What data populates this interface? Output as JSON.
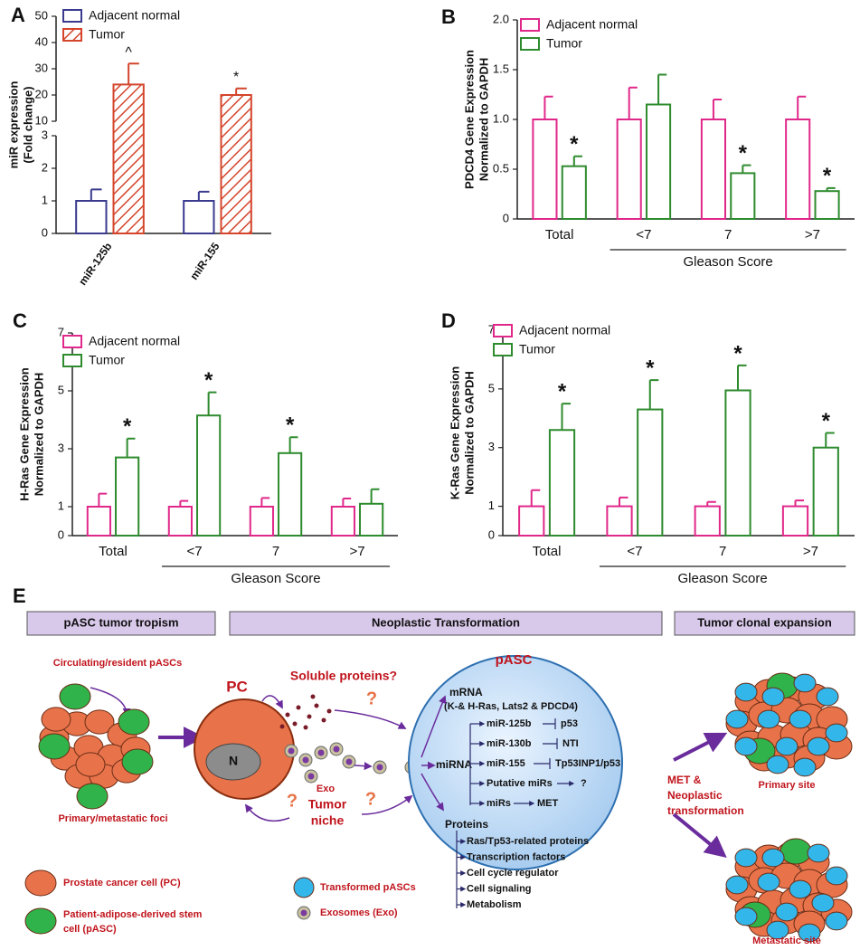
{
  "chart_data": [
    {
      "type": "bar",
      "label": "A",
      "ylabel": [
        "miR expression",
        "(Fold change)"
      ],
      "categories": [
        "miR-125b",
        "miR-155"
      ],
      "ylim": [
        0,
        50
      ],
      "ybreak": [
        3,
        10
      ],
      "yticks": [
        0,
        1,
        2,
        3,
        10,
        20,
        30,
        40,
        50
      ],
      "legend": "upper left",
      "hatch": [
        false,
        true
      ],
      "xlabel_rotation": -55,
      "series": [
        {
          "name": "Adjacent normal",
          "color": "#3b3b8f",
          "values": [
            1,
            1
          ],
          "errors": [
            0.35,
            0.28
          ],
          "annotations": [
            null,
            null
          ]
        },
        {
          "name": "Tumor",
          "color": "#d4452c",
          "values": [
            24,
            20
          ],
          "errors": [
            8,
            2.5
          ],
          "annotations": [
            "^",
            "*"
          ]
        }
      ]
    },
    {
      "type": "bar",
      "label": "B",
      "ylabel": [
        "PDCD4 Gene Expression",
        "Normalized to GAPDH"
      ],
      "categories": [
        "Total",
        "<7",
        "7",
        ">7"
      ],
      "xgroups": [
        {
          "label": "Gleason Score",
          "categories": [
            "<7",
            "7",
            ">7"
          ]
        }
      ],
      "ylim": [
        0,
        2
      ],
      "yticks": [
        0,
        0.5,
        {
          "value": 1,
          "label": "1.0"
        },
        1.5,
        {
          "value": 2,
          "label": "2.0"
        }
      ],
      "legend": "upper left",
      "hatch": [
        false,
        false
      ],
      "series": [
        {
          "name": "Adjacent normal",
          "color": "#e0288a",
          "values": [
            1,
            1,
            1,
            1
          ],
          "errors": [
            0.23,
            0.32,
            0.2,
            0.23
          ],
          "annotations": [
            null,
            null,
            null,
            null
          ]
        },
        {
          "name": "Tumor",
          "color": "#2e8b2e",
          "values": [
            0.53,
            1.15,
            0.46,
            0.28
          ],
          "errors": [
            0.1,
            0.3,
            0.08,
            0.03
          ],
          "annotations": [
            "*",
            null,
            "*",
            "*"
          ]
        }
      ]
    },
    {
      "type": "bar",
      "label": "C",
      "ylabel": [
        "H-Ras Gene Expression",
        "Normalized to GAPDH"
      ],
      "categories": [
        "Total",
        "<7",
        "7",
        ">7"
      ],
      "xgroups": [
        {
          "label": "Gleason Score",
          "categories": [
            "<7",
            "7",
            ">7"
          ]
        }
      ],
      "ylim": [
        0,
        7
      ],
      "yticks": [
        0,
        1,
        3,
        5,
        7
      ],
      "legend": "upper left",
      "hatch": [
        false,
        false
      ],
      "series": [
        {
          "name": "Adjacent normal",
          "color": "#e0288a",
          "values": [
            1,
            1,
            1,
            1
          ],
          "errors": [
            0.45,
            0.2,
            0.3,
            0.28
          ],
          "annotations": [
            null,
            null,
            null,
            null
          ]
        },
        {
          "name": "Tumor",
          "color": "#2e8b2e",
          "values": [
            2.7,
            4.15,
            2.85,
            1.1
          ],
          "errors": [
            0.65,
            0.8,
            0.55,
            0.5
          ],
          "annotations": [
            "*",
            "*",
            "*",
            null
          ]
        }
      ]
    },
    {
      "type": "bar",
      "label": "D",
      "ylabel": [
        "K-Ras Gene Expression",
        "Normalized to GAPDH"
      ],
      "categories": [
        "Total",
        "<7",
        "7",
        ">7"
      ],
      "xgroups": [
        {
          "label": "Gleason Score",
          "categories": [
            "<7",
            "7",
            ">7"
          ]
        }
      ],
      "ylim": [
        0,
        7
      ],
      "yticks": [
        0,
        1,
        3,
        5,
        7
      ],
      "legend": "upper left",
      "hatch": [
        false,
        false
      ],
      "series": [
        {
          "name": "Adjacent normal",
          "color": "#e0288a",
          "values": [
            1,
            1,
            1,
            1
          ],
          "errors": [
            0.55,
            0.3,
            0.15,
            0.2
          ],
          "annotations": [
            null,
            null,
            null,
            null
          ]
        },
        {
          "name": "Tumor",
          "color": "#2e8b2e",
          "values": [
            3.6,
            4.3,
            4.95,
            3.0
          ],
          "errors": [
            0.9,
            1.0,
            0.85,
            0.5
          ],
          "annotations": [
            "*",
            "*",
            "*",
            "*"
          ]
        }
      ]
    }
  ],
  "diagram": {
    "label": "E",
    "headers": [
      "pASC tumor tropism",
      "Neoplastic Transformation",
      "Tumor clonal expansion"
    ],
    "circulating": "Circulating/resident pASCs",
    "foci": "Primary/metastatic foci",
    "soluble": "Soluble proteins?",
    "pc": "PC",
    "nucleus": "N",
    "exo": "Exo",
    "niche": [
      "Tumor",
      "niche"
    ],
    "question_marks": [
      "?",
      "?",
      "?"
    ],
    "pasc": "pASC",
    "mrna": {
      "title": "mRNA",
      "genes": "(K-& H-Ras, Lats2 & PDCD4)"
    },
    "mirna": {
      "title": "miRNA",
      "items": [
        {
          "name": "miR-125b",
          "target": "p53"
        },
        {
          "name": "miR-130b",
          "target": "NTI"
        },
        {
          "name": "miR-155",
          "target": "Tp53INP1/p53"
        },
        {
          "name": "Putative miRs",
          "target": "?"
        },
        {
          "name": "miRs",
          "target": "MET"
        }
      ]
    },
    "proteins": {
      "title": "Proteins",
      "items": [
        "Ras/Tp53-related proteins",
        "Transcription factors",
        "Cell cycle regulator",
        "Cell signaling",
        "Metabolism"
      ]
    },
    "transition": [
      "MET &",
      "Neoplastic",
      "transformation"
    ],
    "sites": [
      "Primary site",
      "Metastatic site"
    ],
    "legend": [
      {
        "lines": [
          "Prostate cancer cell (PC)"
        ]
      },
      {
        "lines": [
          "Patient-adipose-derived stem",
          "cell (pASC)"
        ]
      },
      {
        "lines": [
          "Transformed pASCs"
        ]
      },
      {
        "lines": [
          "Exosomes (Exo)"
        ]
      }
    ]
  }
}
